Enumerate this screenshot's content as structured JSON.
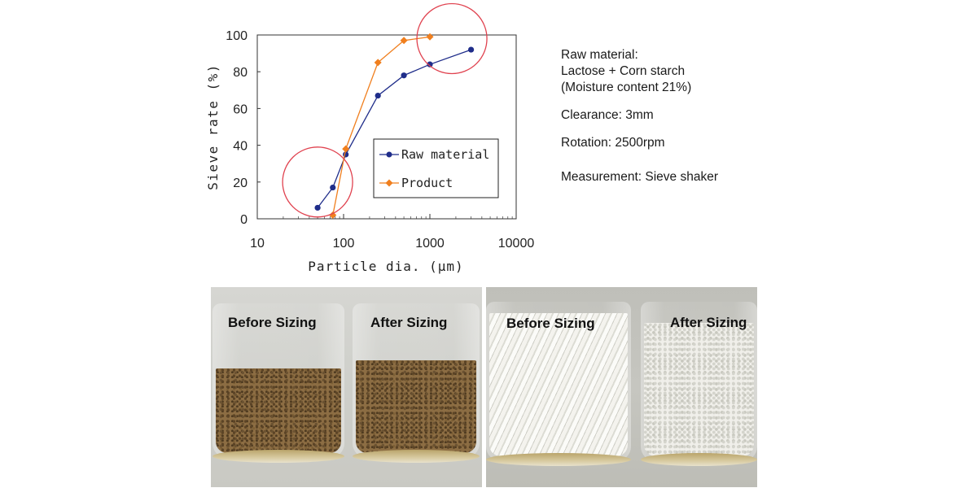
{
  "chart_data": {
    "type": "line",
    "xscale": "log",
    "xlim": [
      10,
      10000
    ],
    "ylim": [
      0,
      100
    ],
    "xticks": [
      "10",
      "100",
      "1000",
      "10000"
    ],
    "yticks": [
      "0",
      "20",
      "40",
      "60",
      "80",
      "100"
    ],
    "xlabel": "Particle dia. (μm)",
    "ylabel": "Sieve rate (%)",
    "legend_position": "inside-lower-right",
    "grid": false,
    "series": [
      {
        "name": "Raw material",
        "color": "#1f2d8a",
        "marker": "circle",
        "points": [
          [
            50,
            6
          ],
          [
            75,
            17
          ],
          [
            106,
            35
          ],
          [
            250,
            67
          ],
          [
            500,
            78
          ],
          [
            1000,
            84
          ],
          [
            3000,
            92
          ]
        ]
      },
      {
        "name": "Product",
        "color": "#f07f1e",
        "marker": "diamond",
        "points": [
          [
            75,
            2
          ],
          [
            106,
            38
          ],
          [
            250,
            85
          ],
          [
            500,
            97
          ],
          [
            1000,
            99
          ]
        ]
      }
    ],
    "annotations": [
      {
        "shape": "circle",
        "color": "#e0424f",
        "center": [
          50,
          20
        ]
      },
      {
        "shape": "circle",
        "color": "#e0424f",
        "center": [
          1800,
          98
        ]
      }
    ]
  },
  "info": {
    "raw_label": "Raw material:",
    "raw_value": "Lactose + Corn starch",
    "moisture": "(Moisture content 21%)",
    "clearance": "Clearance: 3mm",
    "rotation": "Rotation: 2500rpm",
    "measurement": "Measurement: Sieve shaker"
  },
  "photos": {
    "left": {
      "before": "Before Sizing",
      "after": "After Sizing"
    },
    "right": {
      "before": "Before Sizing",
      "after": "After Sizing"
    }
  }
}
